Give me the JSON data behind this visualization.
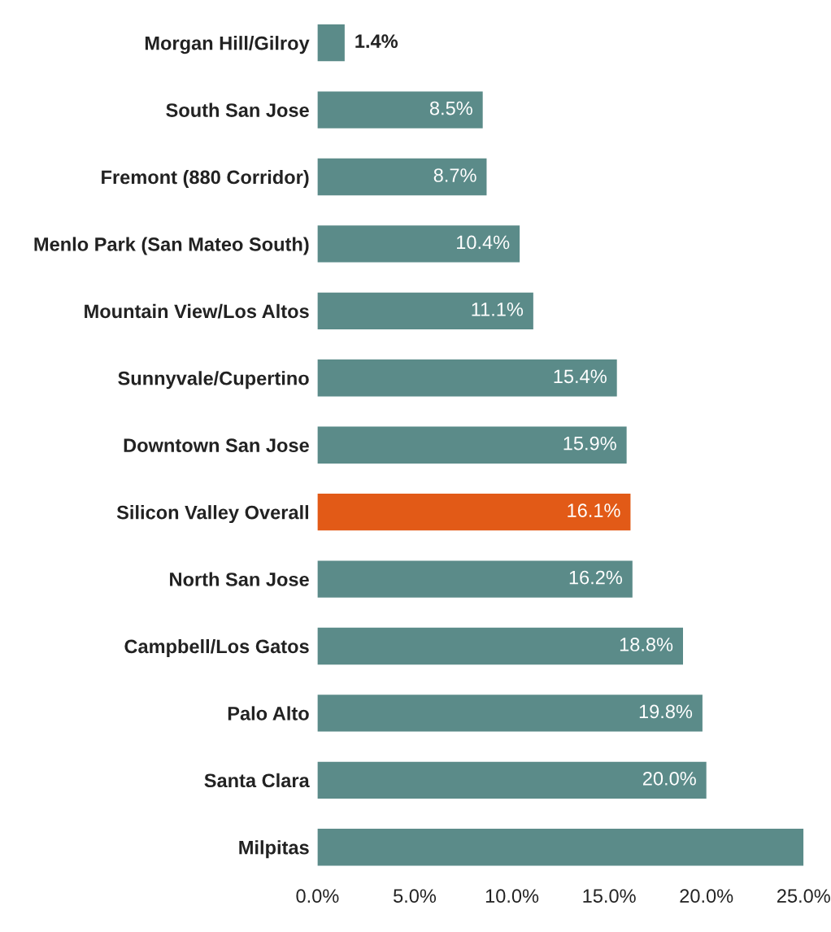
{
  "chart_data": {
    "type": "bar",
    "orientation": "horizontal",
    "categories": [
      "Morgan Hill/Gilroy",
      "South San Jose",
      "Fremont (880 Corridor)",
      "Menlo Park (San Mateo South)",
      "Mountain View/Los Altos",
      "Sunnyvale/Cupertino",
      "Downtown San Jose",
      "Silicon Valley Overall",
      "North San Jose",
      "Campbell/Los Gatos",
      "Palo Alto",
      "Santa Clara",
      "Milpitas"
    ],
    "values": [
      1.4,
      8.5,
      8.7,
      10.4,
      11.1,
      15.4,
      15.9,
      16.1,
      16.2,
      18.8,
      19.8,
      20.0,
      25.0
    ],
    "value_labels": [
      "1.4%",
      "8.5%",
      "8.7%",
      "10.4%",
      "11.1%",
      "15.4%",
      "15.9%",
      "16.1%",
      "16.2%",
      "18.8%",
      "19.8%",
      "20.0%",
      null
    ],
    "colors": [
      "#5b8b89",
      "#5b8b89",
      "#5b8b89",
      "#5b8b89",
      "#5b8b89",
      "#5b8b89",
      "#5b8b89",
      "#e25a17",
      "#5b8b89",
      "#5b8b89",
      "#5b8b89",
      "#5b8b89",
      "#5b8b89"
    ],
    "xlim": [
      0,
      25
    ],
    "xticks": [
      {
        "value": 0,
        "label": "0.0%"
      },
      {
        "value": 5,
        "label": "5.0%"
      },
      {
        "value": 10,
        "label": "10.0%"
      },
      {
        "value": 15,
        "label": "15.0%"
      },
      {
        "value": 20,
        "label": "20.0%"
      },
      {
        "value": 25,
        "label": "25.0%"
      }
    ],
    "grid": false,
    "legend": false
  }
}
